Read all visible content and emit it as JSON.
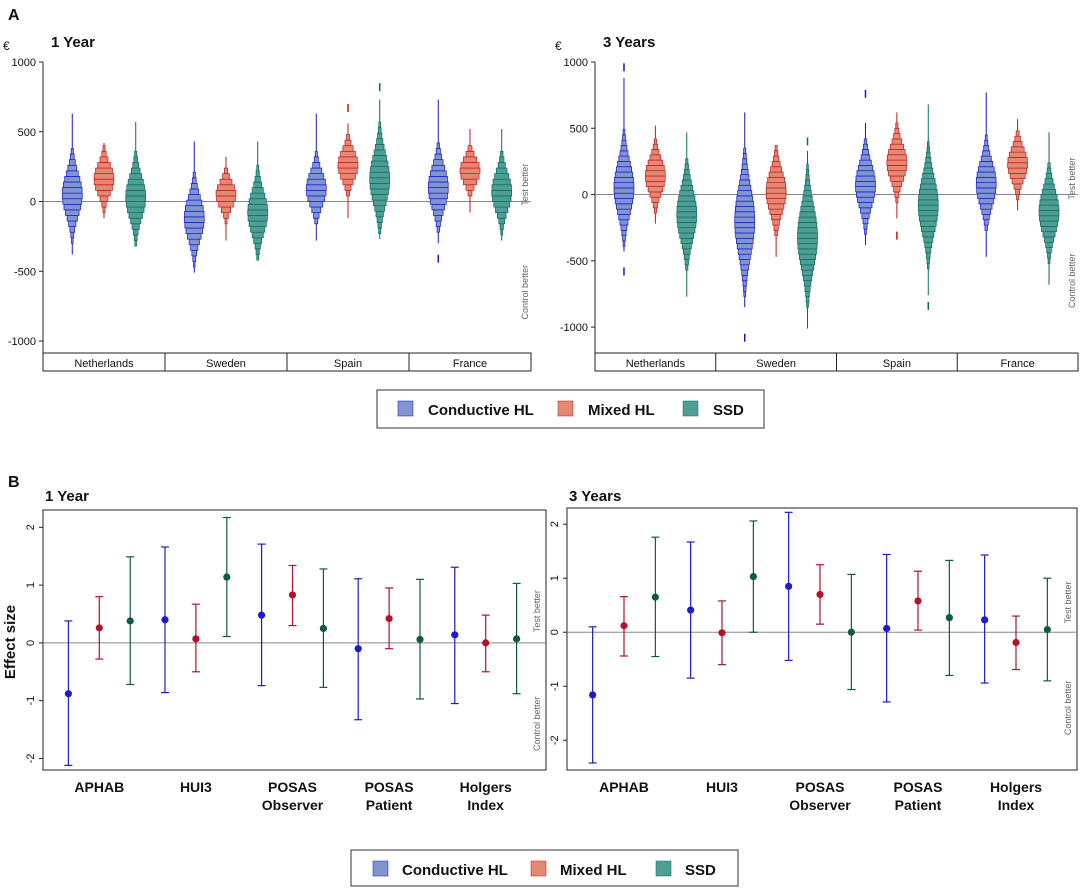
{
  "colors": {
    "conductive_fill": "#7f94d1",
    "conductive_line": "#1818c8",
    "mixed_fill": "#e58873",
    "mixed_line": "#c01818",
    "ssd_fill": "#4e9e95",
    "ssd_line": "#0c6a5c",
    "point_conductive": "#1c1ccc",
    "point_mixed": "#b01428",
    "point_ssd": "#0e5a46",
    "axis": "#222222",
    "zero_line": "#888888"
  },
  "panel_a": {
    "label": "A",
    "currency_symbol": "€",
    "side_labels": {
      "top": "Test better",
      "bottom": "Control better"
    },
    "legend": [
      "Conductive HL",
      "Mixed HL",
      "SSD"
    ]
  },
  "panel_b": {
    "label": "B",
    "ylabel": "Effect size",
    "side_labels": {
      "top": "Test better",
      "bottom": "Control better"
    },
    "legend": [
      "Conductive HL",
      "Mixed HL",
      "SSD"
    ]
  },
  "chart_data": [
    {
      "type": "histogram-violin",
      "title": "1 Year",
      "ylabel": "€",
      "ylim": [
        -1050,
        1000
      ],
      "yticks": [
        -1000,
        -500,
        0,
        500,
        1000
      ],
      "categories": [
        "Netherlands",
        "Sweden",
        "Spain",
        "France"
      ],
      "series": [
        {
          "name": "Conductive HL",
          "median": [
            50,
            -120,
            90,
            100
          ],
          "iqr": [
            [
              -50,
              150
            ],
            [
              -220,
              -20
            ],
            [
              10,
              170
            ],
            [
              0,
              200
            ]
          ],
          "range": [
            [
              -380,
              630
            ],
            [
              -510,
              430
            ],
            [
              -280,
              630
            ],
            [
              -300,
              730
            ]
          ],
          "outliers": [
            [],
            [],
            [],
            [
              -410
            ]
          ]
        },
        {
          "name": "Mixed HL",
          "median": [
            160,
            50,
            260,
            220
          ],
          "iqr": [
            [
              90,
              230
            ],
            [
              -10,
              110
            ],
            [
              190,
              330
            ],
            [
              160,
              280
            ]
          ],
          "range": [
            [
              -120,
              420
            ],
            [
              -280,
              320
            ],
            [
              -120,
              560
            ],
            [
              -80,
              520
            ]
          ],
          "outliers": [
            [],
            [],
            [
              670
            ],
            []
          ]
        },
        {
          "name": "SSD",
          "median": [
            30,
            -80,
            160,
            70
          ],
          "iqr": [
            [
              -70,
              130
            ],
            [
              -180,
              20
            ],
            [
              40,
              280
            ],
            [
              -20,
              160
            ]
          ],
          "range": [
            [
              -320,
              570
            ],
            [
              -420,
              430
            ],
            [
              -270,
              730
            ],
            [
              -280,
              520
            ]
          ],
          "outliers": [
            [],
            [],
            [
              820
            ],
            []
          ]
        }
      ]
    },
    {
      "type": "histogram-violin",
      "title": "3 Years",
      "ylabel": "€",
      "ylim": [
        -1150,
        1000
      ],
      "yticks": [
        -1000,
        -500,
        0,
        500,
        1000
      ],
      "categories": [
        "Netherlands",
        "Sweden",
        "Spain",
        "France"
      ],
      "series": [
        {
          "name": "Conductive HL",
          "median": [
            50,
            -200,
            70,
            80
          ],
          "iqr": [
            [
              -80,
              180
            ],
            [
              -380,
              -40
            ],
            [
              -40,
              180
            ],
            [
              -30,
              190
            ]
          ],
          "range": [
            [
              -430,
              880
            ],
            [
              -850,
              620
            ],
            [
              -380,
              540
            ],
            [
              -470,
              770
            ]
          ],
          "outliers": [
            [
              -580,
              960
            ],
            [
              -1080
            ],
            [
              760
            ],
            []
          ]
        },
        {
          "name": "Mixed HL",
          "median": [
            140,
            20,
            240,
            230
          ],
          "iqr": [
            [
              60,
              230
            ],
            [
              -90,
              120
            ],
            [
              150,
              330
            ],
            [
              150,
              310
            ]
          ],
          "range": [
            [
              -220,
              520
            ],
            [
              -470,
              370
            ],
            [
              -180,
              620
            ],
            [
              -120,
              570
            ]
          ],
          "outliers": [
            [],
            [],
            [
              -310
            ],
            []
          ]
        },
        {
          "name": "SSD",
          "median": [
            -150,
            -320,
            -80,
            -130
          ],
          "iqr": [
            [
              -280,
              -20
            ],
            [
              -480,
              -160
            ],
            [
              -220,
              60
            ],
            [
              -250,
              -20
            ]
          ],
          "range": [
            [
              -770,
              470
            ],
            [
              -1010,
              330
            ],
            [
              -760,
              680
            ],
            [
              -680,
              470
            ]
          ],
          "outliers": [
            [],
            [
              400
            ],
            [
              -840
            ],
            []
          ]
        }
      ]
    },
    {
      "type": "errorbar",
      "title": "1 Year",
      "ylabel": "Effect size",
      "ylim": [
        -2.2,
        2.3
      ],
      "yticks": [
        -2,
        -1,
        0,
        1,
        2
      ],
      "categories": [
        "APHAB",
        "HUI3",
        "POSAS\nObserver",
        "POSAS\nPatient",
        "Holgers\nIndex"
      ],
      "series": [
        {
          "name": "Conductive HL",
          "estimate": [
            -0.88,
            0.4,
            0.48,
            -0.1,
            0.14
          ],
          "lower": [
            -2.12,
            -0.86,
            -0.74,
            -1.33,
            -1.05
          ],
          "upper": [
            0.38,
            1.66,
            1.71,
            1.11,
            1.31
          ]
        },
        {
          "name": "Mixed HL",
          "estimate": [
            0.26,
            0.07,
            0.83,
            0.42,
            0.0
          ],
          "lower": [
            -0.28,
            -0.5,
            0.3,
            -0.1,
            -0.5
          ],
          "upper": [
            0.8,
            0.67,
            1.34,
            0.95,
            0.48
          ]
        },
        {
          "name": "SSD",
          "estimate": [
            0.38,
            1.14,
            0.25,
            0.06,
            0.07
          ],
          "lower": [
            -0.72,
            0.11,
            -0.77,
            -0.97,
            -0.88
          ],
          "upper": [
            1.49,
            2.17,
            1.28,
            1.1,
            1.03
          ]
        }
      ]
    },
    {
      "type": "errorbar",
      "title": "3 Years",
      "ylabel": "Effect size",
      "ylim": [
        -2.55,
        2.3
      ],
      "yticks": [
        -2,
        -1,
        0,
        1,
        2
      ],
      "categories": [
        "APHAB",
        "HUI3",
        "POSAS\nObserver",
        "POSAS\nPatient",
        "Holgers\nIndex"
      ],
      "series": [
        {
          "name": "Conductive HL",
          "estimate": [
            -1.16,
            0.41,
            0.85,
            0.07,
            0.23
          ],
          "lower": [
            -2.42,
            -0.85,
            -0.52,
            -1.29,
            -0.94
          ],
          "upper": [
            0.1,
            1.67,
            2.22,
            1.44,
            1.43
          ]
        },
        {
          "name": "Mixed HL",
          "estimate": [
            0.12,
            -0.01,
            0.7,
            0.58,
            -0.19
          ],
          "lower": [
            -0.44,
            -0.6,
            0.15,
            0.04,
            -0.69
          ],
          "upper": [
            0.66,
            0.58,
            1.25,
            1.13,
            0.3
          ]
        },
        {
          "name": "SSD",
          "estimate": [
            0.65,
            1.03,
            0.0,
            0.27,
            0.05
          ],
          "lower": [
            -0.45,
            0.0,
            -1.06,
            -0.8,
            -0.9
          ],
          "upper": [
            1.76,
            2.06,
            1.07,
            1.33,
            1.0
          ]
        }
      ]
    }
  ]
}
